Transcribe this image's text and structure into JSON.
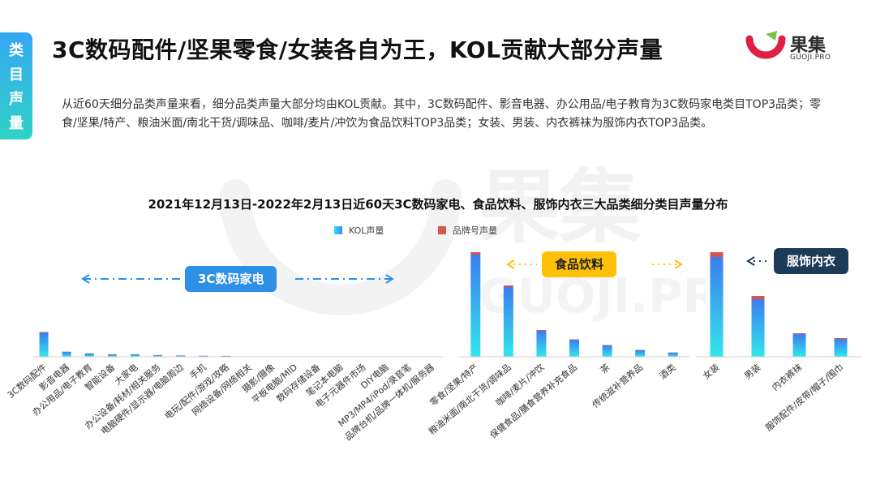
{
  "page": {
    "side_tab": [
      "类",
      "目",
      "声",
      "量"
    ],
    "title": "3C数码配件/坚果零食/女装各自为王，KOL贡献大部分声量",
    "logo": {
      "name": "果集",
      "sub": "GUOJI.PRO",
      "watermark_name": "果集",
      "watermark_sub": "GUOJI.PRO"
    },
    "intro": "从近60天细分品类声量来看，细分品类声量大部分均由KOL贡献。其中，3C数码配件、影音电器、办公用品/电子教育为3C数码家电类目TOP3品类；零食/坚果/特产、粮油米面/南北干货/调味品、咖啡/麦片/冲饮为食品饮料TOP3品类；女装、男装、内衣裤袜为服饰内衣TOP3品类。",
    "colors": {
      "kol_top": "#3a8ef0",
      "kol_bottom": "#32e0e8",
      "brand": "#d9534f",
      "pill_3c": "#2e8fe6",
      "pill_food": "#ffc107",
      "pill_apparel": "#1d3a57"
    }
  },
  "chart_data": {
    "type": "bar",
    "stacked": true,
    "title": "2021年12月13日-2022年2月13日近60天3C数码家电、食品饮料、服饰内衣三大品类细分类目声量分布",
    "legend": [
      "KOL声量",
      "品牌号声量"
    ],
    "legend_placement": "top-center",
    "groups": [
      {
        "name": "3C数码家电",
        "categories": [
          "3C数码配件",
          "影音电器",
          "办公用品/电子教育",
          "智能设备",
          "大家电",
          "办公设备/耗材/相关服务",
          "电脑硬件/显示器/电脑周边",
          "手机",
          "电玩/配件/游戏/攻略",
          "网络设备/网络相关",
          "摄影/摄像",
          "平板电脑/MID",
          "数码存储设备",
          "笔记本电脑",
          "电子元器件市场",
          "DIY电脑",
          "MP3/MP4/iPod/录音笔",
          "品牌台机/品牌一体机/服务器"
        ],
        "series": [
          {
            "name": "KOL声量",
            "values": [
              30,
              6,
              4,
              3,
              3,
              2,
              1.5,
              1.2,
              1,
              0,
              0,
              0,
              0,
              0,
              0,
              0,
              0,
              0
            ]
          },
          {
            "name": "品牌号声量",
            "values": [
              0.5,
              0.3,
              0.2,
              0.1,
              0.1,
              0.1,
              0.1,
              0.1,
              0.1,
              0,
              0,
              0,
              0,
              0,
              0,
              0,
              0,
              0
            ]
          }
        ]
      },
      {
        "name": "食品饮料",
        "categories": [
          "零食/坚果/特产",
          "粮油米面/南北干货/调味品",
          "咖啡/麦片/冲饮",
          "保健食品/膳食营养补充食品",
          "茶",
          "传统滋补营养品",
          "酒类"
        ],
        "series": [
          {
            "name": "KOL声量",
            "values": [
              126,
              86,
              32,
              21,
              14,
              8,
              5
            ]
          },
          {
            "name": "品牌号声量",
            "values": [
              3,
              2,
              1,
              0.5,
              0.5,
              0.4,
              0.3
            ]
          }
        ]
      },
      {
        "name": "服饰内衣",
        "categories": [
          "女装",
          "男装",
          "内衣裤袜",
          "服饰配件/皮带/帽子/围巾"
        ],
        "series": [
          {
            "name": "KOL声量",
            "values": [
              123,
              71,
              28,
              22
            ]
          },
          {
            "name": "品牌号声量",
            "values": [
              6,
              4,
              1,
              1
            ]
          }
        ]
      }
    ]
  }
}
